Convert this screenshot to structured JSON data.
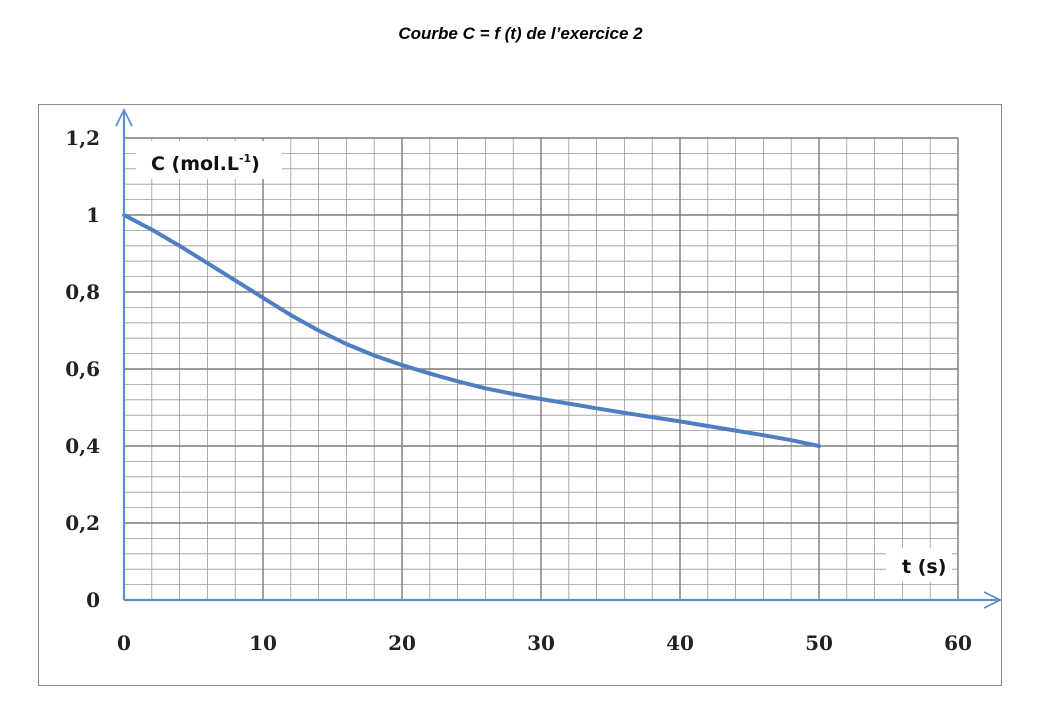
{
  "page": {
    "title": "Courbe C = f (t) de l’exercice 2"
  },
  "chart_data": {
    "type": "line",
    "title": "Courbe C = f (t) de l’exercice 2",
    "xlabel": "t (s)",
    "ylabel": {
      "base": "C (mol.L",
      "sup": "-1",
      "close": ")"
    },
    "xlim": [
      0,
      60
    ],
    "ylim": [
      0,
      1.2
    ],
    "xticks": [
      "0",
      "10",
      "20",
      "30",
      "40",
      "50",
      "60"
    ],
    "yticks": [
      "0",
      "0,2",
      "0,4",
      "0,6",
      "0,8",
      "1",
      "1,2"
    ],
    "xtick_values": [
      0,
      10,
      20,
      30,
      40,
      50,
      60
    ],
    "ytick_values": [
      0,
      0.2,
      0.4,
      0.6,
      0.8,
      1.0,
      1.2
    ],
    "minor_grid": {
      "x_step": 2,
      "y_step": 0.04
    },
    "grid": true,
    "series": [
      {
        "x": [
          0,
          2,
          4,
          6,
          8,
          10,
          12,
          14,
          16,
          18,
          20,
          22,
          24,
          26,
          28,
          30,
          32,
          34,
          36,
          38,
          40,
          42,
          44,
          46,
          48,
          50
        ],
        "y": [
          1.0,
          0.962,
          0.92,
          0.875,
          0.83,
          0.785,
          0.74,
          0.7,
          0.665,
          0.635,
          0.61,
          0.588,
          0.568,
          0.55,
          0.535,
          0.522,
          0.51,
          0.498,
          0.486,
          0.475,
          0.464,
          0.452,
          0.44,
          0.428,
          0.415,
          0.4
        ],
        "color": "#4f7ec1"
      }
    ],
    "colors": {
      "grid": "#9a9a9a",
      "axis": "#5b8fd1",
      "curve": "#4f7ec1"
    }
  }
}
